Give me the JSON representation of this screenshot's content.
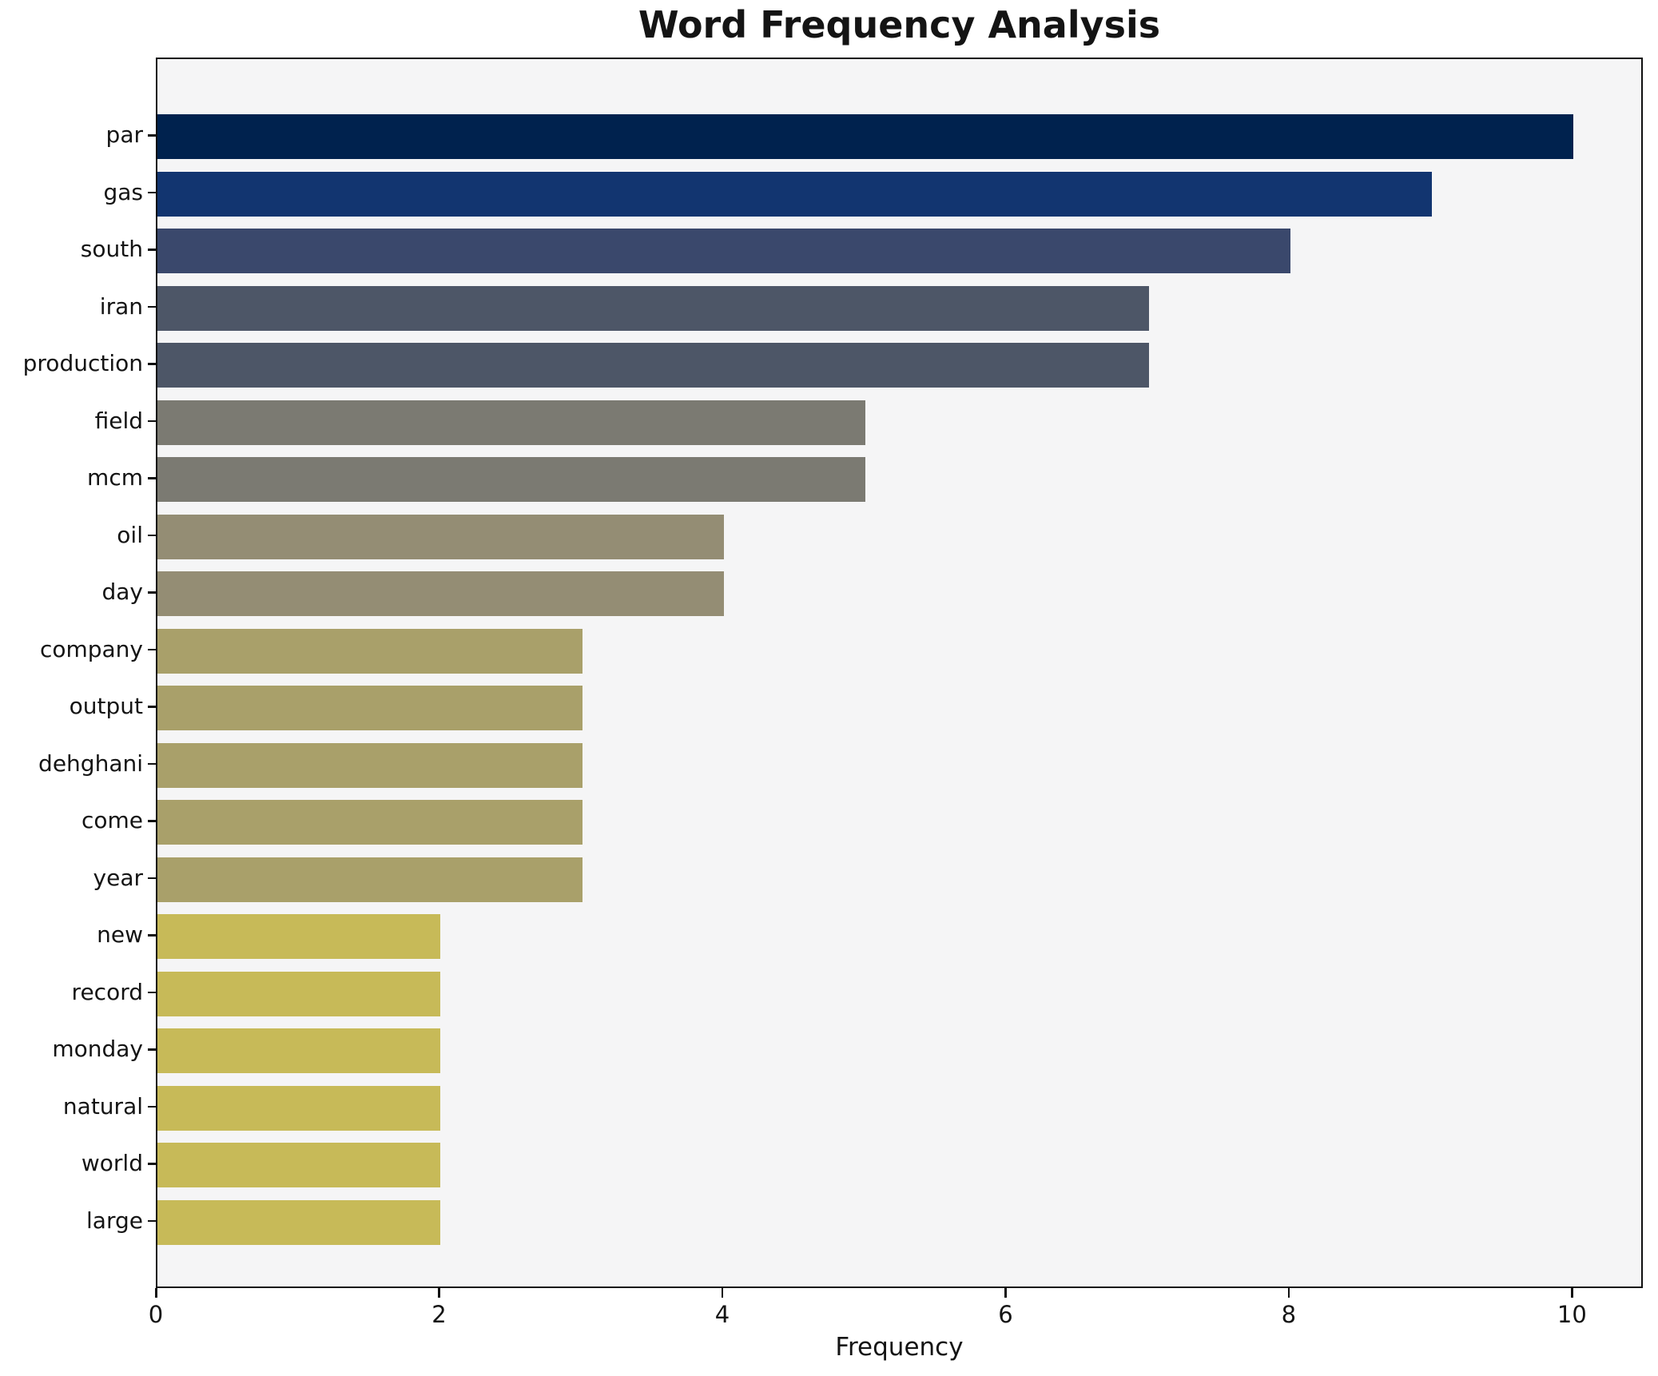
{
  "chart_data": {
    "type": "bar",
    "orientation": "horizontal",
    "title": "Word Frequency Analysis",
    "xlabel": "Frequency",
    "ylabel": "",
    "categories": [
      "par",
      "gas",
      "south",
      "iran",
      "production",
      "field",
      "mcm",
      "oil",
      "day",
      "company",
      "output",
      "dehghani",
      "come",
      "year",
      "new",
      "record",
      "monday",
      "natural",
      "world",
      "large"
    ],
    "values": [
      10,
      9,
      8,
      7,
      7,
      5,
      5,
      4,
      4,
      3,
      3,
      3,
      3,
      3,
      2,
      2,
      2,
      2,
      2,
      2
    ],
    "bar_colors": [
      "#00224e",
      "#123570",
      "#3a486c",
      "#4d5667",
      "#4d5667",
      "#7b7a72",
      "#7b7a72",
      "#948d74",
      "#948d74",
      "#a9a06a",
      "#a9a06a",
      "#a9a06a",
      "#a9a06a",
      "#a9a06a",
      "#c7ba58",
      "#c7ba58",
      "#c7ba58",
      "#c7ba58",
      "#c7ba58",
      "#c7ba58"
    ],
    "xticks": [
      0,
      2,
      4,
      6,
      8,
      10
    ],
    "xlim": [
      0,
      10.5
    ],
    "grid": false,
    "legend": null,
    "plot_facecolor": "#f5f5f6",
    "figure_facecolor": "#ffffff",
    "spine_color": "#101010",
    "text_color": "#141414"
  }
}
